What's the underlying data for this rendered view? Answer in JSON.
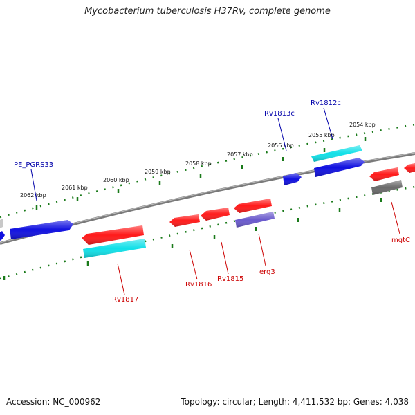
{
  "title": "Mycobacterium tuberculosis H37Rv, complete genome",
  "footer": {
    "accession": "Accession: NC_000962",
    "summary": "Topology: circular; Length: 4,411,532 bp; Genes: 4,038"
  },
  "colors": {
    "backbone": "#7a7a7a",
    "tick": "#1a7a1a",
    "forward_label": "#0000aa",
    "reverse_label": "#cc0000",
    "red": "#ff1a1a",
    "blue": "#1010e0",
    "cyan": "#10e0e8",
    "purple": "#6a5acd",
    "gray": "#6a6a6a"
  },
  "scale_labels": [
    "2062 kbp",
    "2061 kbp",
    "2060 kbp",
    "2059 kbp",
    "2058 kbp",
    "2057 kbp",
    "2056 kbp",
    "2055 kbp",
    "2054 kbp"
  ],
  "gene_labels": {
    "forward": [
      "PE_PGRS33",
      "Rv1813c",
      "Rv1812c"
    ],
    "reverse": [
      "Rv1817",
      "Rv1816",
      "Rv1815",
      "erg3",
      "mgtC"
    ]
  }
}
